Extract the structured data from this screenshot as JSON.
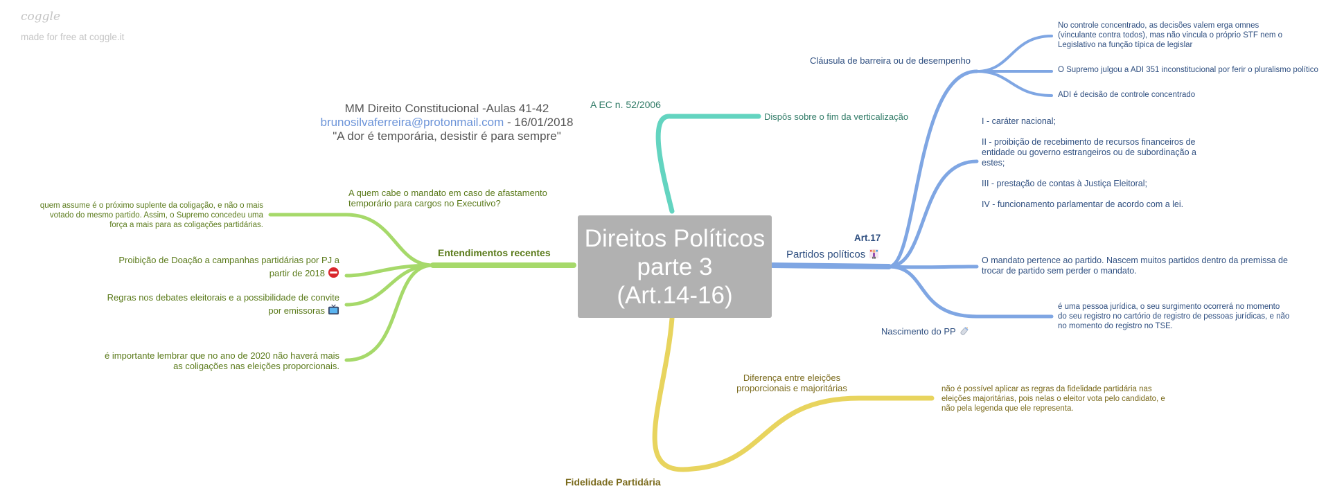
{
  "brand": {
    "logo": "coggle",
    "subtitle": "made for free at coggle.it"
  },
  "header": {
    "line1": "MM Direito Constitucional -Aulas 41-42",
    "email": "brunosilvaferreira@protonmail.com",
    "date": " - 16/01/2018",
    "quote": "\"A dor é temporária, desistir é para sempre\""
  },
  "central": {
    "line1": "Direitos Políticos",
    "line2": "parte 3",
    "line3": "(Art.14-16)"
  },
  "colors": {
    "blue": "#7fa6e3",
    "teal": "#63d4c0",
    "yellow": "#e8d45e",
    "green": "#a6d96a",
    "central": "#b1b1b1"
  },
  "teal_branch": {
    "label": "A EC n. 52/2006",
    "child": "Dispôs sobre o fim da verticalização"
  },
  "blue_branch": {
    "art": "Art.17",
    "label": "Partidos políticos",
    "label_icon": "juggler-icon",
    "clausula": {
      "label": "Cláusula de barreira ou de desempenho",
      "children": [
        {
          "l1": "No controle concentrado, as decisões valem erga omnes",
          "l2": "(vinculante contra todos), mas não vincula o próprio STF nem o",
          "l3": "Legislativo na função típica de legislar"
        },
        {
          "l1": "O Supremo julgou a ADI 351 inconstitucional por ferir o pluralismo político"
        },
        {
          "l1": "ADI é decisão de controle concentrado"
        }
      ]
    },
    "incisos": {
      "i": "I - caráter nacional;",
      "ii_1": "II - proibição de recebimento de recursos financeiros de",
      "ii_2": "entidade ou governo estrangeiros ou de subordinação a",
      "ii_3": "estes;",
      "iii": "III - prestação de contas à Justiça Eleitoral;",
      "iv": "IV - funcionamento parlamentar de acordo com a lei."
    },
    "mandato": {
      "l1": "O mandato pertence ao partido. Nascem muitos partidos dentro da premissa de",
      "l2": "trocar de partido sem perder o mandato."
    },
    "nascimento": {
      "label": "Nascimento do PP",
      "icon": "baby-bottle-icon",
      "child": {
        "l1": "é uma pessoa jurídica, o seu surgimento ocorrerá no momento",
        "l2": "do seu registro no cartório de registro de pessoas jurídicas, e não",
        "l3": "no momento do registro no TSE."
      }
    }
  },
  "yellow_branch": {
    "label": "Fidelidade Partidária",
    "sub": {
      "l1": "Diferença entre eleições",
      "l2": "proporcionais e majoritárias"
    },
    "child": {
      "l1": "não é possível aplicar as regras da fidelidade partidária nas",
      "l2": "eleições majoritárias, pois nelas o eleitor vota pelo candidato, e",
      "l3": "não pela legenda que ele representa."
    }
  },
  "green_branch": {
    "label": "Entendimentos recentes",
    "q": {
      "l1": "A quem cabe o mandato em caso de afastamento",
      "l2": "temporário para cargos no Executivo?"
    },
    "q_child": {
      "l1": "quem assume é o próximo suplente da coligação, e não o mais",
      "l2": "votado do mesmo partido. Assim, o Supremo concedeu uma",
      "l3": "força a mais para as coligações partidárias."
    },
    "doacao": {
      "l1": "Proibição de Doação a campanhas partidárias por PJ a",
      "l2": "partir de 2018",
      "icon": "no-entry-icon"
    },
    "debates": {
      "l1": "Regras nos debates eleitorais e a possibilidade de convite",
      "l2": "por emissoras",
      "icon": "television-icon"
    },
    "coligacoes": {
      "l1": "é importante lembrar que no ano de 2020 não haverá mais",
      "l2": "as coligações nas eleições proporcionais."
    }
  }
}
